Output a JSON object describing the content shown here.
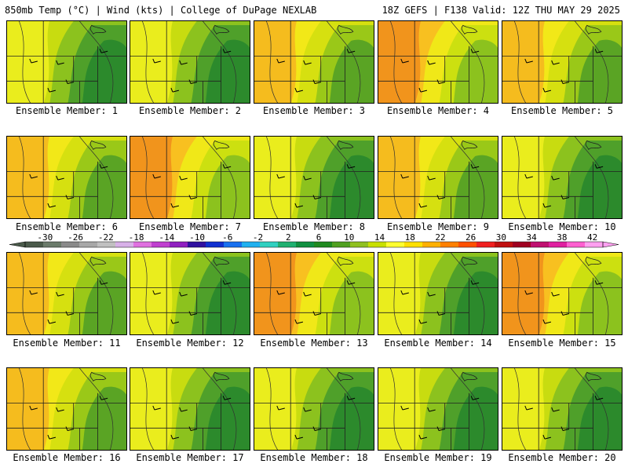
{
  "header": {
    "left": "850mb Temp (°C) | Wind (kts) | College of DuPage NEXLAB",
    "right": "18Z GEFS | F138 Valid: 12Z THU MAY 29 2025"
  },
  "members": [
    {
      "label": "Ensemble Member: 1",
      "warm": 0.35
    },
    {
      "label": "Ensemble Member: 2",
      "warm": 0.25
    },
    {
      "label": "Ensemble Member: 3",
      "warm": 0.45
    },
    {
      "label": "Ensemble Member: 4",
      "warm": 0.7
    },
    {
      "label": "Ensemble Member: 5",
      "warm": 0.55
    },
    {
      "label": "Ensemble Member: 6",
      "warm": 0.4
    },
    {
      "label": "Ensemble Member: 7",
      "warm": 0.6
    },
    {
      "label": "Ensemble Member: 8",
      "warm": 0.3
    },
    {
      "label": "Ensemble Member: 9",
      "warm": 0.5
    },
    {
      "label": "Ensemble Member: 10",
      "warm": 0.3
    },
    {
      "label": "Ensemble Member: 11",
      "warm": 0.45
    },
    {
      "label": "Ensemble Member: 12",
      "warm": 0.3
    },
    {
      "label": "Ensemble Member: 13",
      "warm": 0.7
    },
    {
      "label": "Ensemble Member: 14",
      "warm": 0.3
    },
    {
      "label": "Ensemble Member: 15",
      "warm": 0.65
    },
    {
      "label": "Ensemble Member: 16",
      "warm": 0.45
    },
    {
      "label": "Ensemble Member: 17",
      "warm": 0.3
    },
    {
      "label": "Ensemble Member: 18",
      "warm": 0.3
    },
    {
      "label": "Ensemble Member: 19",
      "warm": 0.3
    },
    {
      "label": "Ensemble Member: 20",
      "warm": 0.3
    }
  ],
  "colorbar": {
    "ticks": [
      "-30",
      "-26",
      "-22",
      "-18",
      "-14",
      "-10",
      "-6",
      "-2",
      "2",
      "6",
      "10",
      "14",
      "18",
      "22",
      "26",
      "30",
      "34",
      "38",
      "42"
    ],
    "colors": [
      "#4a5a4a",
      "#6a7a6a",
      "#8a8a8a",
      "#a8a8a8",
      "#c0c0c0",
      "#d8b0e8",
      "#e070e0",
      "#c040d0",
      "#9020c0",
      "#3010a0",
      "#1030d0",
      "#1870f0",
      "#20b0f0",
      "#30d0c0",
      "#20b070",
      "#109040",
      "#208a20",
      "#50a020",
      "#90c020",
      "#c8e000",
      "#ffff30",
      "#ffe000",
      "#ffb000",
      "#ff8000",
      "#ff5000",
      "#f02020",
      "#c01010",
      "#a00020",
      "#c01070",
      "#e020a0",
      "#ff60d0",
      "#ffa0f0"
    ]
  }
}
